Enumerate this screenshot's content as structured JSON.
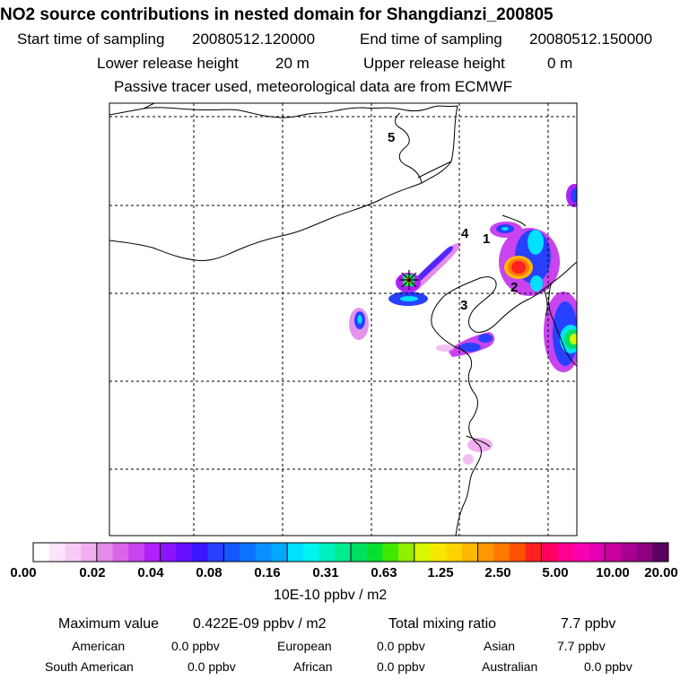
{
  "header": {
    "title": "NO2 source contributions in nested domain for Shangdianzi_200805",
    "start_label": "Start time of sampling",
    "start_value": "20080512.120000",
    "end_label": "End time of sampling",
    "end_value": "20080512.150000",
    "lower_label": "Lower release height",
    "lower_value": "20 m",
    "upper_label": "Upper release height",
    "upper_value": "0 m",
    "note": "Passive tracer used, meteorological data are from ECMWF"
  },
  "map": {
    "markers": [
      "1",
      "2",
      "3",
      "4",
      "5"
    ],
    "station_icon": "receptor-star-icon"
  },
  "colorbar": {
    "labels": [
      "0.00",
      "0.02",
      "0.04",
      "0.08",
      "0.16",
      "0.31",
      "0.63",
      "1.25",
      "2.50",
      "5.00",
      "10.00",
      "20.00"
    ],
    "unit": "10E-10 ppbv / m2",
    "colors": [
      "#ffffff",
      "#fbe4fb",
      "#f6cbf6",
      "#f0b0f0",
      "#e48ae8",
      "#d866e6",
      "#c844ee",
      "#b020f8",
      "#8a14ff",
      "#6410ff",
      "#3c14ff",
      "#2840ff",
      "#1458ff",
      "#0a74ff",
      "#0890ff",
      "#04a8ff",
      "#00e0ff",
      "#00f4f0",
      "#00f0c0",
      "#00ec90",
      "#00e060",
      "#08e030",
      "#40e800",
      "#90f000",
      "#d8f800",
      "#f4e800",
      "#ffd400",
      "#ffb800",
      "#ff9800",
      "#ff7800",
      "#ff5000",
      "#ff2020",
      "#ff0060",
      "#ff0090",
      "#f800b0",
      "#e400b0",
      "#c800a0",
      "#a80090",
      "#8c0080",
      "#5a0060"
    ]
  },
  "summary": {
    "max_label": "Maximum value",
    "max_value": "0.422E-09 ppbv / m2",
    "total_label": "Total mixing ratio",
    "total_value": "7.7 ppbv",
    "american_label": "American",
    "american_value": "0.0 ppbv",
    "european_label": "European",
    "european_value": "0.0 ppbv",
    "asian_label": "Asian",
    "asian_value": "7.7 ppbv",
    "south_american_label": "South American",
    "south_american_value": "0.0 ppbv",
    "african_label": "African",
    "african_value": "0.0 ppbv",
    "australian_label": "Australian",
    "australian_value": "0.0 ppbv"
  }
}
